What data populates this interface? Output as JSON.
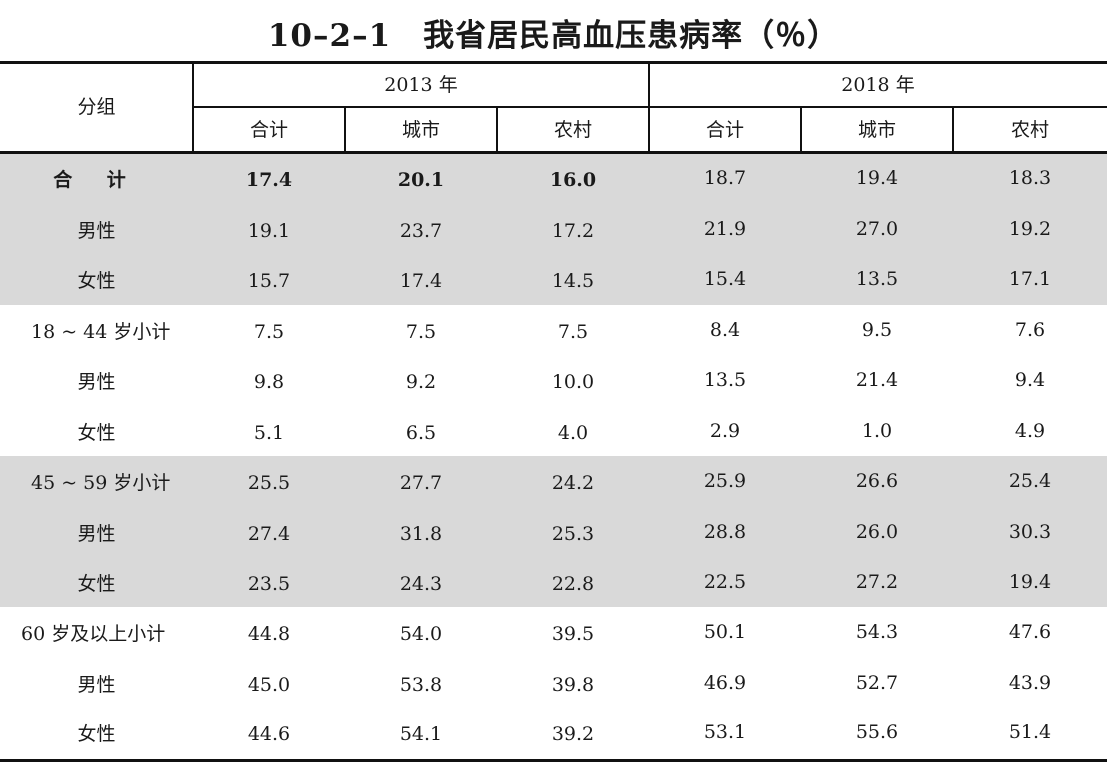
{
  "title": "10–2–1　我省居民高血压患病率（％）",
  "header": {
    "group_label": "分组",
    "years": [
      "2013 年",
      "2018 年"
    ],
    "columns": [
      "合计",
      "城市",
      "农村",
      "合计",
      "城市",
      "农村"
    ]
  },
  "rows": [
    {
      "label": "合 计",
      "values": [
        "17.4",
        "20.1",
        "16.0",
        "18.7",
        "19.4",
        "18.3"
      ]
    },
    {
      "label": "男性",
      "values": [
        "19.1",
        "23.7",
        "17.2",
        "21.9",
        "27.0",
        "19.2"
      ]
    },
    {
      "label": "女性",
      "values": [
        "15.7",
        "17.4",
        "14.5",
        "15.4",
        "13.5",
        "17.1"
      ]
    },
    {
      "label": "18 ~ 44 岁小计",
      "values": [
        "7.5",
        "7.5",
        "7.5",
        "8.4",
        "9.5",
        "7.6"
      ]
    },
    {
      "label": "男性",
      "values": [
        "9.8",
        "9.2",
        "10.0",
        "13.5",
        "21.4",
        "9.4"
      ]
    },
    {
      "label": "女性",
      "values": [
        "5.1",
        "6.5",
        "4.0",
        "2.9",
        "1.0",
        "4.9"
      ]
    },
    {
      "label": "45 ~ 59 岁小计",
      "values": [
        "25.5",
        "27.7",
        "24.2",
        "25.9",
        "26.6",
        "25.4"
      ]
    },
    {
      "label": "男性",
      "values": [
        "27.4",
        "31.8",
        "25.3",
        "28.8",
        "26.0",
        "30.3"
      ]
    },
    {
      "label": "女性",
      "values": [
        "23.5",
        "24.3",
        "22.8",
        "22.5",
        "27.2",
        "19.4"
      ]
    },
    {
      "label": "60 岁及以上小计",
      "values": [
        "44.8",
        "54.0",
        "39.5",
        "50.1",
        "54.3",
        "47.6"
      ]
    },
    {
      "label": "男性",
      "values": [
        "45.0",
        "53.8",
        "39.8",
        "46.9",
        "52.7",
        "43.9"
      ]
    },
    {
      "label": "女性",
      "values": [
        "44.6",
        "54.1",
        "39.2",
        "53.1",
        "55.6",
        "51.4"
      ]
    }
  ]
}
